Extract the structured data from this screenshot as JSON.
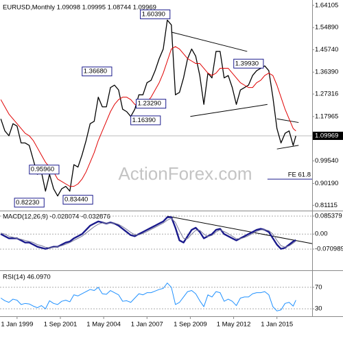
{
  "chart_data": [
    {
      "type": "line",
      "title": "EURUSD,Monthly 1.09098 1.09995 1.08744 1.09969",
      "watermark": "ActionForex.com",
      "xlim": [
        -12.6,
        218
      ],
      "ylim": [
        0.795,
        1.652
      ],
      "yticks": [
        1.64105,
        {
          "value": 1.5489,
          "label": "1.54890"
        },
        {
          "value": 1.4574,
          "label": "1.45740"
        },
        {
          "value": 1.3639,
          "label": "1.36390"
        },
        1.27316,
        1.17965,
        {
          "value": 0.9954,
          "label": "0.99540"
        },
        {
          "value": 0.9019,
          "label": "0.90190"
        },
        0.81115
      ],
      "last": 1.09969,
      "x": [
        -12,
        -9,
        -6,
        -3,
        0,
        3,
        6,
        9,
        12,
        15,
        18,
        21,
        24,
        27,
        30,
        33,
        36,
        39,
        42,
        45,
        48,
        51,
        54,
        57,
        60,
        63,
        66,
        69,
        72,
        75,
        78,
        81,
        84,
        87,
        90,
        93,
        96,
        99,
        102,
        105,
        108,
        111,
        114,
        117,
        120,
        123,
        126,
        129,
        132,
        135,
        138,
        141,
        144,
        147,
        150,
        153,
        156,
        159,
        162,
        165,
        168,
        171,
        174,
        177,
        180,
        183,
        186,
        189,
        192,
        195,
        198,
        201,
        204,
        206
      ],
      "series": [
        {
          "color": "#000000",
          "values": [
            1.17,
            1.12,
            1.1,
            1.15,
            1.14,
            1.07,
            1.07,
            1.06,
            1.0,
            0.94,
            0.95,
            0.87,
            0.94,
            0.88,
            0.85,
            0.88,
            0.89,
            0.87,
            0.98,
            0.97,
            1.02,
            1.08,
            1.15,
            1.16,
            1.26,
            1.22,
            1.22,
            1.3,
            1.31,
            1.29,
            1.21,
            1.2,
            1.18,
            1.21,
            1.27,
            1.27,
            1.32,
            1.33,
            1.37,
            1.42,
            1.46,
            1.58,
            1.56,
            1.27,
            1.28,
            1.34,
            1.42,
            1.46,
            1.43,
            1.35,
            1.23,
            1.36,
            1.34,
            1.45,
            1.45,
            1.34,
            1.35,
            1.3,
            1.23,
            1.29,
            1.3,
            1.31,
            1.35,
            1.37,
            1.38,
            1.39,
            1.37,
            1.26,
            1.13,
            1.07,
            1.11,
            1.12,
            1.06,
            1.09969
          ]
        },
        {
          "color": "#e00000",
          "values": [
            1.25,
            1.22,
            1.19,
            1.17,
            1.15,
            1.13,
            1.11,
            1.1,
            1.08,
            1.05,
            1.02,
            0.99,
            0.97,
            0.95,
            0.92,
            0.91,
            0.9,
            0.89,
            0.89,
            0.9,
            0.92,
            0.95,
            0.99,
            1.03,
            1.08,
            1.12,
            1.16,
            1.2,
            1.23,
            1.25,
            1.26,
            1.26,
            1.25,
            1.23,
            1.23,
            1.23,
            1.24,
            1.26,
            1.29,
            1.32,
            1.36,
            1.41,
            1.46,
            1.47,
            1.46,
            1.44,
            1.42,
            1.41,
            1.4,
            1.4,
            1.38,
            1.36,
            1.35,
            1.36,
            1.38,
            1.38,
            1.38,
            1.36,
            1.34,
            1.32,
            1.31,
            1.3,
            1.3,
            1.32,
            1.33,
            1.35,
            1.36,
            1.35,
            1.31,
            1.26,
            1.21,
            1.17,
            1.13,
            1.12
          ]
        }
      ],
      "annotations": [
        {
          "label": "1.60390",
          "x": 114,
          "value": 1.6039
        },
        {
          "label": "1.36680",
          "x": 71,
          "value": 1.3668
        },
        {
          "label": "1.23290",
          "x": 87,
          "value": 1.2329
        },
        {
          "label": "1.16390",
          "x": 83,
          "value": 1.1639
        },
        {
          "label": "1.39930",
          "x": 183,
          "value": 1.3993
        },
        {
          "label": "0.95960",
          "x": 32,
          "value": 0.9596
        },
        {
          "label": "0.83440",
          "x": 33,
          "value": 0.8344
        },
        {
          "label": "0.82230",
          "x": 21,
          "value": 0.8223
        }
      ],
      "fe": {
        "label": "FE 61.8",
        "value": 0.92,
        "x": [
          185,
          218
        ]
      },
      "trendlines": [
        {
          "x": [
            114,
            170
          ],
          "y": [
            1.53,
            1.45
          ]
        },
        {
          "x": [
            128,
            185
          ],
          "y": [
            1.18,
            1.23
          ]
        },
        {
          "x": [
            192,
            208
          ],
          "y": [
            1.17,
            1.155
          ]
        },
        {
          "x": [
            192,
            208
          ],
          "y": [
            1.045,
            1.06
          ]
        }
      ]
    },
    {
      "type": "line",
      "title": "MACD(12,26,9) -0.028074 -0.032876",
      "xlim": [
        -12.6,
        218
      ],
      "ylim": [
        -0.1,
        0.095
      ],
      "yticks": [
        0.085379,
        {
          "value": 0,
          "label": "0.00"
        },
        -0.070989
      ],
      "grid": true,
      "x": [
        -12,
        -9,
        -6,
        -3,
        0,
        3,
        6,
        9,
        12,
        15,
        18,
        21,
        24,
        27,
        30,
        33,
        36,
        39,
        42,
        45,
        48,
        51,
        54,
        57,
        60,
        63,
        66,
        69,
        72,
        75,
        78,
        81,
        84,
        87,
        90,
        93,
        96,
        99,
        102,
        105,
        108,
        111,
        114,
        117,
        120,
        123,
        126,
        129,
        132,
        135,
        138,
        141,
        144,
        147,
        150,
        153,
        156,
        159,
        162,
        165,
        168,
        171,
        174,
        177,
        180,
        183,
        186,
        189,
        192,
        195,
        198,
        201,
        204,
        206
      ],
      "series": [
        {
          "color": "#1a1a8c",
          "values": [
            0.0,
            -0.01,
            -0.02,
            -0.02,
            -0.02,
            -0.03,
            -0.04,
            -0.04,
            -0.05,
            -0.06,
            -0.065,
            -0.07,
            -0.065,
            -0.06,
            -0.06,
            -0.05,
            -0.04,
            -0.035,
            -0.02,
            -0.01,
            0.0,
            0.02,
            0.04,
            0.05,
            0.06,
            0.055,
            0.05,
            0.055,
            0.05,
            0.04,
            0.025,
            0.01,
            -0.005,
            -0.01,
            0.0,
            0.01,
            0.02,
            0.03,
            0.04,
            0.05,
            0.06,
            0.08,
            0.08,
            0.03,
            -0.03,
            -0.04,
            -0.01,
            0.02,
            0.03,
            0.01,
            -0.02,
            -0.01,
            0.0,
            0.02,
            0.025,
            0.0,
            -0.01,
            -0.02,
            -0.03,
            -0.02,
            -0.01,
            0.0,
            0.01,
            0.02,
            0.025,
            0.02,
            0.01,
            -0.02,
            -0.05,
            -0.07,
            -0.065,
            -0.05,
            -0.035,
            -0.028074
          ]
        },
        {
          "color": "#7a7a9a",
          "values": [
            0.005,
            0.0,
            -0.01,
            -0.015,
            -0.02,
            -0.025,
            -0.03,
            -0.035,
            -0.04,
            -0.05,
            -0.055,
            -0.062,
            -0.065,
            -0.063,
            -0.06,
            -0.055,
            -0.048,
            -0.04,
            -0.03,
            -0.02,
            -0.01,
            0.005,
            0.02,
            0.035,
            0.047,
            0.053,
            0.052,
            0.052,
            0.052,
            0.046,
            0.035,
            0.022,
            0.008,
            -0.003,
            -0.004,
            0.003,
            0.012,
            0.022,
            0.032,
            0.042,
            0.052,
            0.066,
            0.075,
            0.055,
            0.015,
            -0.02,
            -0.022,
            0.0,
            0.018,
            0.018,
            0.0,
            -0.012,
            -0.006,
            0.01,
            0.02,
            0.012,
            0.002,
            -0.01,
            -0.022,
            -0.022,
            -0.016,
            -0.008,
            0.003,
            0.013,
            0.02,
            0.021,
            0.016,
            0.0,
            -0.03,
            -0.055,
            -0.062,
            -0.056,
            -0.043,
            -0.032876
          ]
        }
      ],
      "trendlines": [
        {
          "x": [
            111,
            218
          ],
          "y": [
            0.085,
            -0.045
          ]
        }
      ]
    },
    {
      "type": "line",
      "title": "RSI(14) 46.0970",
      "xlim": [
        -12.6,
        218
      ],
      "ylim": [
        20,
        94
      ],
      "yticks": [
        70,
        30
      ],
      "grid": true,
      "xticks": [
        {
          "value": 0,
          "label": "1 Jan 1999"
        },
        {
          "value": 32,
          "label": "1 Sep 2001"
        },
        {
          "value": 64,
          "label": "1 May 2004"
        },
        {
          "value": 96,
          "label": "1 Jan 2007"
        },
        {
          "value": 128,
          "label": "1 Sep 2009"
        },
        {
          "value": 160,
          "label": "1 May 2012"
        },
        {
          "value": 192,
          "label": "1 Jan 2015"
        }
      ],
      "x": [
        -12,
        -9,
        -6,
        -3,
        0,
        3,
        6,
        9,
        12,
        15,
        18,
        21,
        24,
        27,
        30,
        33,
        36,
        39,
        42,
        45,
        48,
        51,
        54,
        57,
        60,
        63,
        66,
        69,
        72,
        75,
        78,
        81,
        84,
        87,
        90,
        93,
        96,
        99,
        102,
        105,
        108,
        111,
        114,
        117,
        120,
        123,
        126,
        129,
        132,
        135,
        138,
        141,
        144,
        147,
        150,
        153,
        156,
        159,
        162,
        165,
        168,
        171,
        174,
        177,
        180,
        183,
        186,
        189,
        192,
        195,
        198,
        201,
        204,
        206
      ],
      "series": [
        {
          "color": "#1e90ff",
          "values": [
            50,
            45,
            42,
            48,
            46,
            38,
            40,
            39,
            35,
            32,
            36,
            30,
            45,
            40,
            38,
            44,
            46,
            43,
            56,
            54,
            58,
            62,
            66,
            64,
            70,
            58,
            57,
            64,
            60,
            56,
            44,
            45,
            42,
            50,
            58,
            56,
            60,
            60,
            63,
            66,
            68,
            78,
            70,
            38,
            42,
            52,
            62,
            64,
            58,
            45,
            34,
            56,
            52,
            62,
            60,
            44,
            48,
            44,
            36,
            50,
            52,
            52,
            58,
            60,
            60,
            62,
            56,
            34,
            26,
            28,
            40,
            42,
            35,
            46.097
          ]
        }
      ]
    }
  ]
}
